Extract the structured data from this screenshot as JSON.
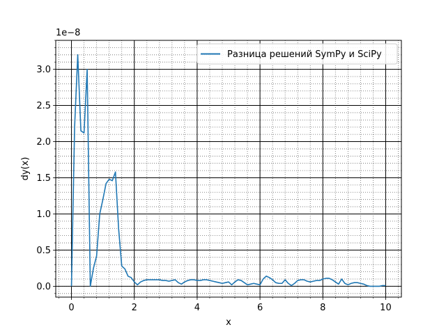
{
  "chart_data": {
    "type": "line",
    "title": "",
    "xlabel": "x",
    "ylabel": "dy(x)",
    "y_scale_note": "1e−8",
    "y_multiplier": 1e-08,
    "xlim": [
      -0.5,
      10.5
    ],
    "ylim": [
      -0.15,
      3.4
    ],
    "xticks": [
      0,
      2,
      4,
      6,
      8,
      10
    ],
    "xtick_labels": [
      "0",
      "2",
      "4",
      "6",
      "8",
      "10"
    ],
    "yticks": [
      0.0,
      0.5,
      1.0,
      1.5,
      2.0,
      2.5,
      3.0
    ],
    "ytick_labels": [
      "0.0",
      "0.5",
      "1.0",
      "1.5",
      "2.0",
      "2.5",
      "3.0"
    ],
    "x_minor_step": 0.4,
    "y_minor_step": 0.1,
    "grid": true,
    "legend_position": "top-right",
    "series": [
      {
        "name": "Разница решений SymPy и SciPy",
        "color": "#1f77b4",
        "x": [
          0.0,
          0.1,
          0.2,
          0.3,
          0.4,
          0.5,
          0.6,
          0.7,
          0.8,
          0.9,
          1.0,
          1.1,
          1.2,
          1.3,
          1.4,
          1.5,
          1.6,
          1.7,
          1.8,
          1.9,
          2.0,
          2.1,
          2.2,
          2.3,
          2.4,
          2.5,
          2.6,
          2.7,
          2.8,
          2.9,
          3.0,
          3.1,
          3.2,
          3.3,
          3.4,
          3.5,
          3.6,
          3.7,
          3.8,
          3.9,
          4.0,
          4.1,
          4.2,
          4.3,
          4.4,
          4.5,
          4.6,
          4.7,
          4.8,
          4.9,
          5.0,
          5.1,
          5.2,
          5.3,
          5.4,
          5.5,
          5.6,
          5.7,
          5.8,
          5.9,
          6.0,
          6.1,
          6.2,
          6.3,
          6.4,
          6.5,
          6.6,
          6.7,
          6.8,
          6.9,
          7.0,
          7.1,
          7.2,
          7.3,
          7.4,
          7.5,
          7.6,
          7.7,
          7.8,
          7.9,
          8.0,
          8.1,
          8.2,
          8.3,
          8.4,
          8.5,
          8.6,
          8.7,
          8.8,
          8.9,
          9.0,
          9.1,
          9.2,
          9.3,
          9.4,
          9.5,
          9.6,
          9.7,
          9.8,
          9.9,
          10.0
        ],
        "y": [
          0.0,
          2.2,
          3.2,
          2.15,
          2.12,
          3.0,
          0.0,
          0.25,
          0.42,
          1.0,
          1.2,
          1.42,
          1.48,
          1.46,
          1.58,
          0.8,
          0.28,
          0.24,
          0.14,
          0.12,
          0.06,
          0.02,
          0.06,
          0.08,
          0.09,
          0.09,
          0.09,
          0.09,
          0.09,
          0.08,
          0.08,
          0.07,
          0.08,
          0.09,
          0.05,
          0.03,
          0.06,
          0.08,
          0.09,
          0.09,
          0.08,
          0.08,
          0.09,
          0.09,
          0.08,
          0.07,
          0.06,
          0.05,
          0.04,
          0.05,
          0.06,
          0.02,
          0.06,
          0.09,
          0.08,
          0.05,
          0.02,
          0.03,
          0.04,
          0.03,
          0.02,
          0.1,
          0.14,
          0.12,
          0.09,
          0.05,
          0.04,
          0.04,
          0.09,
          0.04,
          0.01,
          0.04,
          0.08,
          0.09,
          0.09,
          0.07,
          0.06,
          0.07,
          0.08,
          0.08,
          0.1,
          0.11,
          0.11,
          0.09,
          0.06,
          0.03,
          0.1,
          0.04,
          0.02,
          0.04,
          0.05,
          0.05,
          0.04,
          0.03,
          0.01,
          0.0,
          0.0,
          0.0,
          0.0,
          0.01,
          0.01
        ]
      }
    ]
  }
}
